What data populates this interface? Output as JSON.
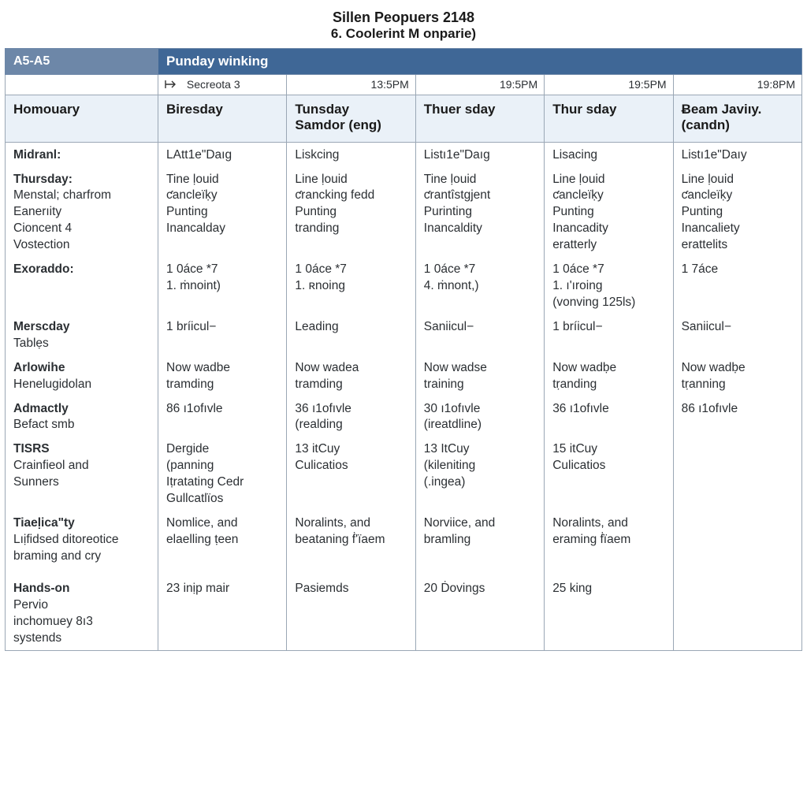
{
  "colors": {
    "banner_left_bg": "#6d87a8",
    "banner_right_bg": "#3f6796",
    "banner_text": "#ffffff",
    "dayhdr_bg": "#eaf1f8",
    "border": "#9aa7b5",
    "body_text": "#2b2f33",
    "page_bg": "#ffffff"
  },
  "fonts": {
    "title_size_pt": 14,
    "header_size_pt": 13,
    "body_size_pt": 11.5
  },
  "title": {
    "main": "Sillen Peopuers 2148",
    "sub": "6. Coolerint M onparie)"
  },
  "banner": {
    "left": "A5-A5",
    "right": "Punday winking"
  },
  "times": {
    "secreota": "Secreota 3",
    "cols": [
      "13:5PM",
      "19:5PM",
      "19:5PM",
      "19:8PM"
    ]
  },
  "day_headers": {
    "col0": "Homouary",
    "col1": {
      "l1": "Biresday",
      "l2": ""
    },
    "col2": {
      "l1": "Tunsday",
      "l2": "Samdor (eng)"
    },
    "col3": {
      "l1": "Thuer sday",
      "l2": ""
    },
    "col4": {
      "l1": "Thur sday",
      "l2": ""
    },
    "col5": {
      "l1": "Ƀeam Javiıy.",
      "l2": "(candn)"
    }
  },
  "rows": [
    {
      "label": {
        "strong": "Midranl:",
        "plain": []
      },
      "cells": [
        [
          "LAtt1e\"Daıg"
        ],
        [
          "Liskcing"
        ],
        [
          "Listı1e\"Daıg"
        ],
        [
          "Lisacing"
        ],
        [
          "Listı1e\"Daıy"
        ]
      ]
    },
    {
      "label": {
        "strong": "Thursday:",
        "plain": [
          "Menstal; charfrom",
          "Eanerıity",
          "Cioncent 4",
          "Vostection"
        ]
      },
      "cells": [
        [
          "Tine ḷouid",
          "ƈancleïḳy",
          "Punting",
          "Inancalday"
        ],
        [
          "Line ḷouid",
          "ƈrancking fedd",
          "Punting",
          "tranding"
        ],
        [
          "Tine ḷouid",
          "ƈrantîstgjent",
          "Purinting",
          "Inancaldity"
        ],
        [
          "Line ḷouid",
          "ƈancleïḳy",
          "Punting",
          "Inancadity",
          "eratterly"
        ],
        [
          "Line ḷouid",
          "ƈancleïḳy",
          "Punting",
          "Inancaliety",
          "erattelits"
        ]
      ]
    },
    {
      "label": {
        "strong": "Exoraddo:",
        "plain": []
      },
      "cells": [
        [
          "1 0áce *7",
          "1. ṁnoint)"
        ],
        [
          "1 0áce *7",
          "1.  ʀnoing"
        ],
        [
          "1 0áce *7",
          "4. ṁnont,)"
        ],
        [
          "1 0áce *7",
          "1. ı'ıroing",
          "(vonving 125ls)"
        ],
        [
          "1 7áce"
        ]
      ]
    },
    {
      "label": {
        "strong": "Merscday",
        "plain": [
          "Tablẹs"
        ]
      },
      "cells": [
        [
          "1 bríicul−"
        ],
        [
          "Leading"
        ],
        [
          "Saniicul−"
        ],
        [
          "1 bríicul−"
        ],
        [
          "Saniicul−"
        ]
      ]
    },
    {
      "label": {
        "strong": "Arlowihe",
        "plain": [
          "Henelugidolan"
        ]
      },
      "cells": [
        [
          "Now wadbe",
          "tramding"
        ],
        [
          "Now wadea",
          "tramding"
        ],
        [
          "Now wadse",
          "training"
        ],
        [
          "Now wadḅe",
          "tṛanding"
        ],
        [
          "Now wadḅe",
          "tṛanning"
        ]
      ]
    },
    {
      "label": {
        "strong": "Admactly",
        "plain": [
          "Befact smb"
        ]
      },
      "cells": [
        [
          "86  ı1ofıvle"
        ],
        [
          "36  ı1ofıvle",
          "(realding"
        ],
        [
          "30  ı1ofıvle",
          "(ireatdline)"
        ],
        [
          "36  ı1ofıvle"
        ],
        [
          "86  ı1ofıvle"
        ]
      ]
    },
    {
      "label": {
        "strong": "TISRS",
        "plain": [
          "",
          "Crainfieol and",
          "Sunners"
        ]
      },
      "cells": [
        [
          "Dergide",
          "(panning",
          "Iṭratating Cedr",
          "Gullcatlїos"
        ],
        [
          "",
          "",
          "13 itCuy",
          "Culicatios"
        ],
        [
          "",
          "",
          "13 ItCuy",
          "(kileniting",
          "(.ingea)"
        ],
        [
          "",
          "",
          "15 itCuy",
          "Culicatios"
        ],
        [
          ""
        ]
      ]
    },
    {
      "label": {
        "strong": "Tiaeḷicaʺty",
        "plain": [
          "Lıịfidsed ditoreotice",
          "braming and cry"
        ]
      },
      "cells": [
        [
          "Nomlice, and",
          "elaelling ṭeen"
        ],
        [
          "Noralints, and",
          "beataning ḟ'ïaem"
        ],
        [
          "Norviice, and",
          "bramling"
        ],
        [
          "Noralints, and",
          "eraming ḟïaem"
        ],
        [
          ""
        ]
      ]
    },
    {
      "label": {
        "strong": "",
        "plain": [
          ""
        ]
      },
      "cells": [
        [
          ""
        ],
        [
          ""
        ],
        [
          ""
        ],
        [
          ""
        ],
        [
          ""
        ]
      ]
    },
    {
      "label": {
        "strong": "Hands-on",
        "plain": [
          "Pervio",
          "inchomuey 8ı3",
          "systends"
        ]
      },
      "cells": [
        [
          "23 inịp mair"
        ],
        [
          "Pasiemds"
        ],
        [
          "20 Ḋovings"
        ],
        [
          "25 king"
        ],
        [
          ""
        ]
      ]
    }
  ]
}
